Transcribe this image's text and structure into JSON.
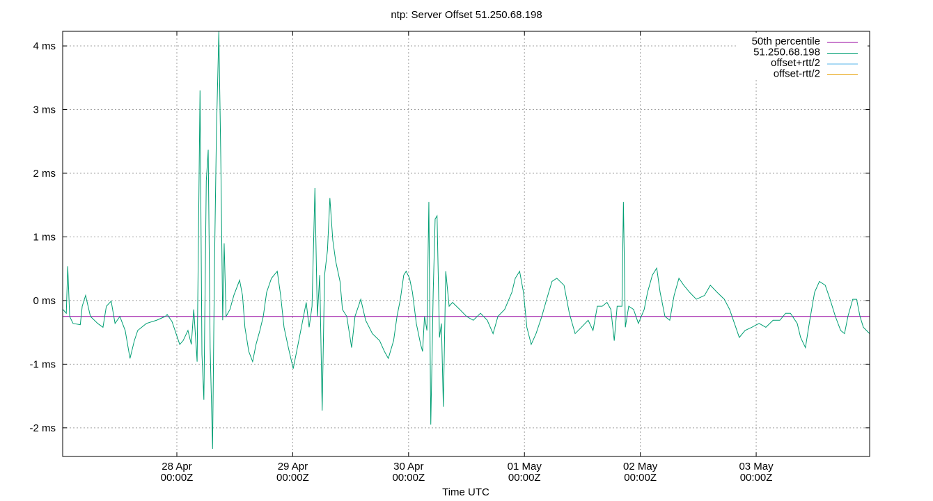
{
  "chart_data": {
    "type": "line",
    "title": "ntp: Server Offset 51.250.68.198",
    "xlabel": "Time UTC",
    "xlim": [
      0.35,
      167.5
    ],
    "xticks": [
      {
        "value": 24,
        "label": "28 Apr 00:00Z"
      },
      {
        "value": 48,
        "label": "29 Apr 00:00Z"
      },
      {
        "value": 72,
        "label": "30 Apr 00:00Z"
      },
      {
        "value": 96,
        "label": "01 May 00:00Z"
      },
      {
        "value": 120,
        "label": "02 May 00:00Z"
      },
      {
        "value": 144,
        "label": "03 May 00:00Z"
      }
    ],
    "ylim": [
      -2.45,
      4.23
    ],
    "yticks": [
      {
        "value": -2,
        "label": "-2 ms"
      },
      {
        "value": -1,
        "label": "-1 ms"
      },
      {
        "value": 0,
        "label": "0 ms"
      },
      {
        "value": 1,
        "label": "1 ms"
      },
      {
        "value": 2,
        "label": "2 ms"
      },
      {
        "value": 3,
        "label": "3 ms"
      },
      {
        "value": 4,
        "label": "4 ms"
      }
    ],
    "grid": true,
    "legend": "upper-right",
    "series": [
      {
        "name": "50th percentile",
        "color": "#94009f",
        "x": [
          0.35,
          167.5
        ],
        "values": [
          -0.25,
          -0.25
        ]
      },
      {
        "name": "51.250.68.198",
        "color": "#009e73",
        "x": [
          0.4,
          1.1,
          1.4,
          1.8,
          2.5,
          4.0,
          4.4,
          5.1,
          6.1,
          7.6,
          8.7,
          9.4,
          10.4,
          11.2,
          12.2,
          13.3,
          14.3,
          15.2,
          15.9,
          17.7,
          19.8,
          21.6,
          22.0,
          23.0,
          24.6,
          25.3,
          26.3,
          27.0,
          27.5,
          28.2,
          28.8,
          29.2,
          29.6,
          30.1,
          30.5,
          30.9,
          31.4,
          31.8,
          32.2,
          32.7,
          33.1,
          33.5,
          33.8,
          34.2,
          35.0,
          35.8,
          37.0,
          37.6,
          38.1,
          38.9,
          39.7,
          40.4,
          41.2,
          41.9,
          42.6,
          43.6,
          44.8,
          45.5,
          46.2,
          47.1,
          48.1,
          49.1,
          49.8,
          50.8,
          51.4,
          52.0,
          52.6,
          53.1,
          53.6,
          54.1,
          54.6,
          55.2,
          55.7,
          56.3,
          56.9,
          57.8,
          58.3,
          59.2,
          60.2,
          60.9,
          62.1,
          63.1,
          64.5,
          66.0,
          67.0,
          67.8,
          68.9,
          69.6,
          70.3,
          71.0,
          71.5,
          72.2,
          72.8,
          73.6,
          74.5,
          74.9,
          75.3,
          75.8,
          76.2,
          76.6,
          77.1,
          77.5,
          77.9,
          78.4,
          78.8,
          79.2,
          79.7,
          80.4,
          81.1,
          82.6,
          84.0,
          85.4,
          86.9,
          88.3,
          89.5,
          90.5,
          91.9,
          93.4,
          94.1,
          95.0,
          95.8,
          96.5,
          97.4,
          98.4,
          99.6,
          100.6,
          101.7,
          102.7,
          104.2,
          105.3,
          106.5,
          107.8,
          109.2,
          110.2,
          111.1,
          112.1,
          113.1,
          113.9,
          114.6,
          115.2,
          116.2,
          116.5,
          116.9,
          117.6,
          118.6,
          119.6,
          120.8,
          121.5,
          122.5,
          123.4,
          124.1,
          125.1,
          126.1,
          127.0,
          128.0,
          129.0,
          130.2,
          131.6,
          133.3,
          134.5,
          135.9,
          137.4,
          138.5,
          139.5,
          140.5,
          141.7,
          143.1,
          144.6,
          146.0,
          147.5,
          148.9,
          150.1,
          151.1,
          152.5,
          153.2,
          154.2,
          155.1,
          156.1,
          157.1,
          158.3,
          159.3,
          160.4,
          161.5,
          162.3,
          163.0,
          164.0,
          164.8,
          165.5,
          166.2,
          167.5
        ],
        "values": [
          -0.14,
          -0.2,
          0.54,
          -0.25,
          -0.36,
          -0.38,
          -0.09,
          0.08,
          -0.25,
          -0.36,
          -0.42,
          -0.09,
          -0.01,
          -0.36,
          -0.25,
          -0.47,
          -0.91,
          -0.63,
          -0.47,
          -0.36,
          -0.31,
          -0.25,
          -0.22,
          -0.33,
          -0.69,
          -0.63,
          -0.47,
          -0.69,
          -0.14,
          -0.96,
          3.3,
          -0.85,
          -1.56,
          1.88,
          2.37,
          -0.74,
          -2.33,
          0.57,
          2.64,
          4.23,
          2.26,
          -0.31,
          0.9,
          -0.25,
          -0.14,
          0.08,
          0.32,
          0.08,
          -0.42,
          -0.8,
          -0.96,
          -0.69,
          -0.47,
          -0.25,
          0.13,
          0.35,
          0.46,
          0.08,
          -0.42,
          -0.74,
          -1.07,
          -0.69,
          -0.42,
          -0.03,
          -0.42,
          -0.09,
          1.77,
          -0.25,
          0.4,
          -1.73,
          0.4,
          0.79,
          1.61,
          0.95,
          0.62,
          0.3,
          -0.14,
          -0.25,
          -0.74,
          -0.25,
          0.02,
          -0.31,
          -0.52,
          -0.63,
          -0.8,
          -0.91,
          -0.63,
          -0.25,
          0.02,
          0.4,
          0.46,
          0.35,
          0.13,
          -0.36,
          -0.69,
          -0.8,
          -0.25,
          -0.47,
          1.55,
          -1.95,
          0.13,
          1.28,
          1.33,
          -0.58,
          -0.36,
          -1.67,
          0.46,
          -0.09,
          -0.03,
          -0.14,
          -0.25,
          -0.31,
          -0.2,
          -0.31,
          -0.52,
          -0.25,
          -0.14,
          0.13,
          0.35,
          0.46,
          0.13,
          -0.42,
          -0.69,
          -0.52,
          -0.25,
          0.02,
          0.3,
          0.35,
          0.24,
          -0.2,
          -0.52,
          -0.42,
          -0.31,
          -0.47,
          -0.09,
          -0.09,
          -0.03,
          -0.14,
          -0.63,
          -0.09,
          -0.09,
          1.55,
          -0.42,
          -0.09,
          -0.14,
          -0.36,
          -0.14,
          0.13,
          0.4,
          0.51,
          0.13,
          -0.25,
          -0.31,
          0.08,
          0.35,
          0.24,
          0.13,
          0.02,
          0.08,
          0.24,
          0.13,
          0.02,
          -0.14,
          -0.36,
          -0.58,
          -0.47,
          -0.42,
          -0.36,
          -0.42,
          -0.31,
          -0.31,
          -0.2,
          -0.2,
          -0.36,
          -0.58,
          -0.74,
          -0.31,
          0.13,
          0.3,
          0.24,
          0.02,
          -0.25,
          -0.47,
          -0.52,
          -0.25,
          0.02,
          0.02,
          -0.25,
          -0.42,
          -0.52
        ]
      },
      {
        "name": "offset+rtt/2",
        "color": "#56b4e9",
        "x": [],
        "values": []
      },
      {
        "name": "offset-rtt/2",
        "color": "#e69f00",
        "x": [],
        "values": []
      }
    ]
  }
}
